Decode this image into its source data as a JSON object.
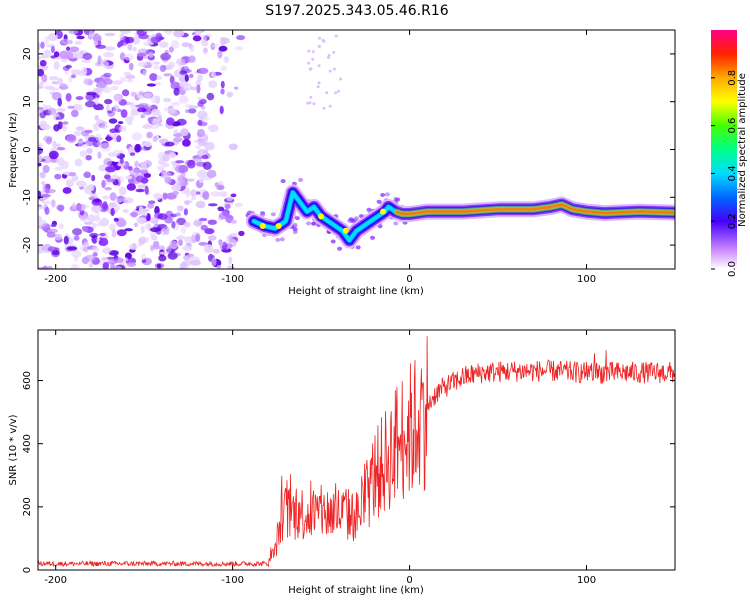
{
  "title": "S197.2025.343.05.46.R16",
  "chart_data": [
    {
      "type": "heatmap",
      "xlabel": "Height of straight line (km)",
      "ylabel": "Frequency (Hz)",
      "xlim": [
        -210,
        150
      ],
      "ylim": [
        -25,
        25
      ],
      "xticks": [
        -200,
        -100,
        0,
        100
      ],
      "yticks": [
        -20,
        -10,
        0,
        10,
        20
      ],
      "colorbar": {
        "label": "Normalized spectral amplitude",
        "range": [
          0,
          1
        ],
        "ticks": [
          "0.0",
          "0.2",
          "0.4",
          "0.6",
          "0.8"
        ],
        "tick_values": [
          0.0,
          0.2,
          0.4,
          0.6,
          0.8
        ]
      },
      "noise_region_km": [
        -210,
        -95
      ],
      "ridge": {
        "description_free": true,
        "points": [
          [
            -88,
            -15
          ],
          [
            -82,
            -16
          ],
          [
            -76,
            -16.5
          ],
          [
            -70,
            -15
          ],
          [
            -66,
            -9
          ],
          [
            -62,
            -11
          ],
          [
            -58,
            -13
          ],
          [
            -54,
            -12
          ],
          [
            -50,
            -14
          ],
          [
            -46,
            -15
          ],
          [
            -42,
            -16
          ],
          [
            -38,
            -17
          ],
          [
            -34,
            -19
          ],
          [
            -30,
            -17
          ],
          [
            -26,
            -16
          ],
          [
            -22,
            -15
          ],
          [
            -18,
            -14
          ],
          [
            -14,
            -13
          ],
          [
            -12,
            -12
          ],
          [
            -8,
            -13
          ],
          [
            -4,
            -13.5
          ],
          [
            0,
            -13.5
          ],
          [
            10,
            -13
          ],
          [
            30,
            -13
          ],
          [
            50,
            -12.5
          ],
          [
            70,
            -12.5
          ],
          [
            80,
            -12
          ],
          [
            86,
            -11.5
          ],
          [
            92,
            -12.5
          ],
          [
            100,
            -13
          ],
          [
            110,
            -13.3
          ],
          [
            130,
            -13
          ],
          [
            150,
            -13.2
          ]
        ]
      }
    },
    {
      "type": "line",
      "xlabel": "Height of straight line (km)",
      "ylabel": "SNR (10 * v/v)",
      "xlim": [
        -210,
        150
      ],
      "ylim": [
        0,
        760
      ],
      "xticks": [
        -200,
        -100,
        0,
        100
      ],
      "yticks": [
        0,
        200,
        400,
        600
      ],
      "series": [
        {
          "name": "SNR",
          "color": "#ee2222",
          "envelope": [
            [
              -210,
              20
            ],
            [
              -80,
              20
            ],
            [
              -76,
              60
            ],
            [
              -72,
              180
            ],
            [
              -60,
              180
            ],
            [
              -40,
              180
            ],
            [
              -30,
              170
            ],
            [
              -25,
              220
            ],
            [
              -20,
              300
            ],
            [
              -15,
              330
            ],
            [
              -10,
              380
            ],
            [
              -5,
              420
            ],
            [
              0,
              440
            ],
            [
              5,
              470
            ],
            [
              10,
              520
            ],
            [
              15,
              560
            ],
            [
              20,
              580
            ],
            [
              30,
              610
            ],
            [
              40,
              625
            ],
            [
              60,
              630
            ],
            [
              80,
              630
            ],
            [
              100,
              625
            ],
            [
              120,
              625
            ],
            [
              150,
              625
            ]
          ]
        }
      ]
    }
  ]
}
